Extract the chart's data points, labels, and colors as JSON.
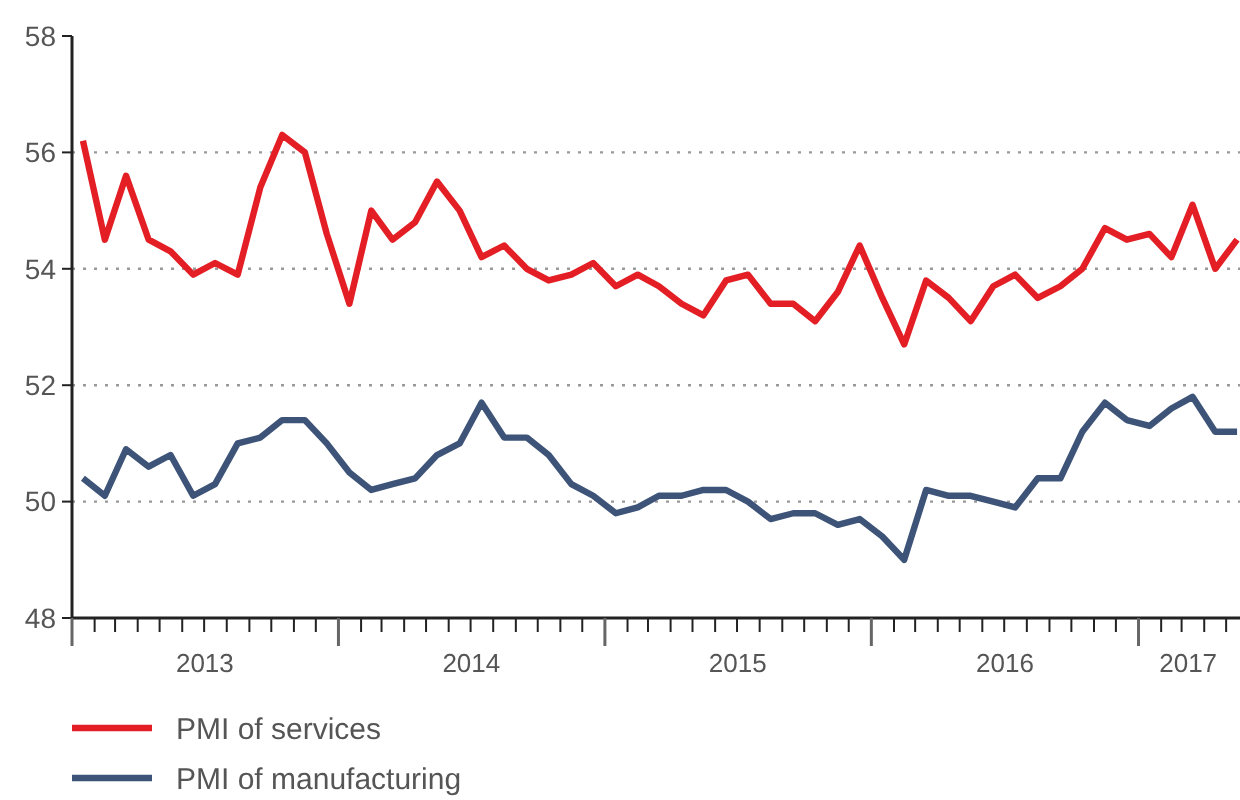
{
  "chart_data": {
    "type": "line",
    "x": [
      "2013-01-16",
      "2013-02-15",
      "2013-03-16",
      "2013-04-16",
      "2013-05-16",
      "2013-06-16",
      "2013-07-16",
      "2013-08-16",
      "2013-09-16",
      "2013-10-16",
      "2013-11-16",
      "2013-12-16",
      "2014-01-16",
      "2014-02-15",
      "2014-03-16",
      "2014-04-16",
      "2014-05-16",
      "2014-06-16",
      "2014-07-16",
      "2014-08-16",
      "2014-09-16",
      "2014-10-16",
      "2014-11-16",
      "2014-12-16",
      "2015-01-16",
      "2015-02-15",
      "2015-03-16",
      "2015-04-16",
      "2015-05-16",
      "2015-06-16",
      "2015-07-16",
      "2015-08-16",
      "2015-09-16",
      "2015-10-16",
      "2015-11-16",
      "2015-12-16",
      "2016-01-16",
      "2016-02-15",
      "2016-03-16",
      "2016-04-16",
      "2016-05-16",
      "2016-06-16",
      "2016-07-16",
      "2016-08-16",
      "2016-09-16",
      "2016-10-16",
      "2016-11-16",
      "2016-12-16",
      "2017-01-16",
      "2017-02-15",
      "2017-03-16",
      "2017-04-16",
      "2017-05-16"
    ],
    "series": [
      {
        "name": "PMI of services",
        "color": "#e31e24",
        "values": [
          56.2,
          54.5,
          55.6,
          54.5,
          54.3,
          53.9,
          54.1,
          53.9,
          55.4,
          56.3,
          56.0,
          54.6,
          53.4,
          55.0,
          54.5,
          54.8,
          55.5,
          55.0,
          54.2,
          54.4,
          54.0,
          53.8,
          53.9,
          54.1,
          53.7,
          53.9,
          53.7,
          53.4,
          53.2,
          53.8,
          53.9,
          53.4,
          53.4,
          53.1,
          53.6,
          54.4,
          53.5,
          52.7,
          53.8,
          53.5,
          53.1,
          53.7,
          53.9,
          53.5,
          53.7,
          54.0,
          54.7,
          54.5,
          54.6,
          54.2,
          55.1,
          54.0,
          54.5
        ]
      },
      {
        "name": "PMI of manufacturing",
        "color": "#3d5478",
        "values": [
          50.4,
          50.1,
          50.9,
          50.6,
          50.8,
          50.1,
          50.3,
          51.0,
          51.1,
          51.4,
          51.4,
          51.0,
          50.5,
          50.2,
          50.3,
          50.4,
          50.8,
          51.0,
          51.7,
          51.1,
          51.1,
          50.8,
          50.3,
          50.1,
          49.8,
          49.9,
          50.1,
          50.1,
          50.2,
          50.2,
          50.0,
          49.7,
          49.8,
          49.8,
          49.6,
          49.7,
          49.4,
          49.0,
          50.2,
          50.1,
          50.1,
          50.0,
          49.9,
          50.4,
          50.4,
          51.2,
          51.7,
          51.4,
          51.3,
          51.6,
          51.8,
          51.2,
          51.2
        ]
      }
    ],
    "xlim": [
      "2013-01-01",
      "2017-05-20"
    ],
    "xticks": [
      {
        "value": "2013-01-01",
        "label": null
      },
      {
        "value": "2013-02-01",
        "label": null
      },
      {
        "value": "2013-03-01",
        "label": null
      },
      {
        "value": "2013-04-01",
        "label": null
      },
      {
        "value": "2013-05-01",
        "label": null
      },
      {
        "value": "2013-06-01",
        "label": null
      },
      {
        "value": "2013-07-01",
        "label": null
      },
      {
        "value": "2013-08-01",
        "label": null
      },
      {
        "value": "2013-09-01",
        "label": null
      },
      {
        "value": "2013-10-01",
        "label": null
      },
      {
        "value": "2013-11-01",
        "label": null
      },
      {
        "value": "2013-12-01",
        "label": null
      },
      {
        "value": "2014-01-01",
        "label": null
      },
      {
        "value": "2014-02-01",
        "label": null
      },
      {
        "value": "2014-03-01",
        "label": null
      },
      {
        "value": "2014-04-01",
        "label": null
      },
      {
        "value": "2014-05-01",
        "label": null
      },
      {
        "value": "2014-06-01",
        "label": null
      },
      {
        "value": "2014-07-01",
        "label": null
      },
      {
        "value": "2014-08-01",
        "label": null
      },
      {
        "value": "2014-09-01",
        "label": null
      },
      {
        "value": "2014-10-01",
        "label": null
      },
      {
        "value": "2014-11-01",
        "label": null
      },
      {
        "value": "2014-12-01",
        "label": null
      },
      {
        "value": "2015-01-01",
        "label": null
      },
      {
        "value": "2015-02-01",
        "label": null
      },
      {
        "value": "2015-03-01",
        "label": null
      },
      {
        "value": "2015-04-01",
        "label": null
      },
      {
        "value": "2015-05-01",
        "label": null
      },
      {
        "value": "2015-06-01",
        "label": null
      },
      {
        "value": "2015-07-01",
        "label": null
      },
      {
        "value": "2015-08-01",
        "label": null
      },
      {
        "value": "2015-09-01",
        "label": null
      },
      {
        "value": "2015-10-01",
        "label": null
      },
      {
        "value": "2015-11-01",
        "label": null
      },
      {
        "value": "2015-12-01",
        "label": null
      },
      {
        "value": "2016-01-01",
        "label": null
      },
      {
        "value": "2016-02-01",
        "label": null
      },
      {
        "value": "2016-03-01",
        "label": null
      },
      {
        "value": "2016-04-01",
        "label": null
      },
      {
        "value": "2016-05-01",
        "label": null
      },
      {
        "value": "2016-06-01",
        "label": null
      },
      {
        "value": "2016-07-01",
        "label": null
      },
      {
        "value": "2016-08-01",
        "label": null
      },
      {
        "value": "2016-09-01",
        "label": null
      },
      {
        "value": "2016-10-01",
        "label": null
      },
      {
        "value": "2016-11-01",
        "label": null
      },
      {
        "value": "2016-12-01",
        "label": null
      },
      {
        "value": "2017-01-01",
        "label": null
      },
      {
        "value": "2017-02-01",
        "label": null
      },
      {
        "value": "2017-03-01",
        "label": null
      },
      {
        "value": "2017-04-01",
        "label": null
      },
      {
        "value": "2017-05-01",
        "label": null
      },
      {
        "value": "2013-07-02",
        "label": "2013"
      },
      {
        "value": "2014-07-02",
        "label": "2014"
      },
      {
        "value": "2015-07-02",
        "label": "2015"
      },
      {
        "value": "2016-07-02",
        "label": "2016"
      },
      {
        "value": "2017-03-10",
        "label": "2017"
      }
    ],
    "ylim": [
      48,
      58
    ],
    "yticks": [
      48,
      50,
      52,
      54,
      56,
      58
    ],
    "grid": "y",
    "legend": "bottom",
    "line_style": "solid",
    "marker": "none"
  }
}
